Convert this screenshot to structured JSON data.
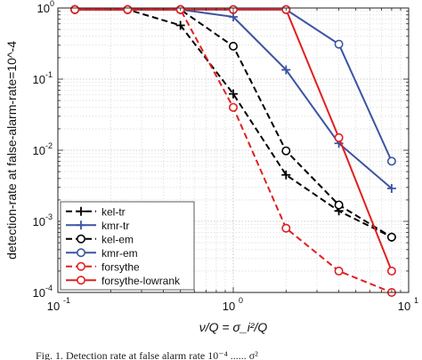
{
  "chart_data": {
    "type": "line",
    "xscale": "log",
    "yscale": "log",
    "xlim": [
      0.1,
      10
    ],
    "ylim": [
      0.0001,
      1
    ],
    "grid": "dotted major and minor",
    "xlabel": "ν/Q = σ_i²/Q",
    "ylabel": "detection-rate at false-alarm-rate=10^-4",
    "x_tick_labels": [
      {
        "value": 0.1,
        "base": "10",
        "exp": "-1"
      },
      {
        "value": 1,
        "base": "10",
        "exp": "0"
      },
      {
        "value": 10,
        "base": "10",
        "exp": "1"
      }
    ],
    "y_tick_labels": [
      {
        "value": 0.0001,
        "base": "10",
        "exp": "-4"
      },
      {
        "value": 0.001,
        "base": "10",
        "exp": "-3"
      },
      {
        "value": 0.01,
        "base": "10",
        "exp": "-2"
      },
      {
        "value": 0.1,
        "base": "10",
        "exp": "-1"
      },
      {
        "value": 1,
        "base": "10",
        "exp": "0"
      }
    ],
    "legend_position": "bottom-left",
    "series": [
      {
        "name": "kel-tr",
        "color": "#000000",
        "dash": "dashed",
        "marker": "plus",
        "x": [
          0.125,
          0.25,
          0.5,
          1,
          2,
          4,
          8
        ],
        "y": [
          0.95,
          0.95,
          0.57,
          0.062,
          0.0045,
          0.0014,
          0.0006
        ]
      },
      {
        "name": "kmr-tr",
        "color": "#3b54a4",
        "dash": "solid",
        "marker": "plus",
        "x": [
          0.125,
          0.25,
          0.5,
          1,
          2,
          4,
          8
        ],
        "y": [
          0.95,
          0.95,
          0.95,
          0.75,
          0.135,
          0.0125,
          0.0029
        ]
      },
      {
        "name": "kel-em",
        "color": "#000000",
        "dash": "dashed",
        "marker": "circle",
        "x": [
          0.125,
          0.25,
          0.5,
          1,
          2,
          4,
          8
        ],
        "y": [
          0.95,
          0.95,
          0.95,
          0.29,
          0.0098,
          0.0017,
          0.0006
        ]
      },
      {
        "name": "kmr-em",
        "color": "#3b54a4",
        "dash": "solid",
        "marker": "circle",
        "x": [
          0.125,
          0.25,
          0.5,
          1,
          2,
          4,
          8
        ],
        "y": [
          0.95,
          0.95,
          0.95,
          0.95,
          0.95,
          0.31,
          0.007
        ]
      },
      {
        "name": "forsythe",
        "color": "#e02020",
        "dash": "dashed",
        "marker": "circle",
        "x": [
          0.125,
          0.25,
          0.5,
          1,
          2,
          4,
          8
        ],
        "y": [
          0.95,
          0.95,
          0.95,
          0.04,
          0.0008,
          0.0002,
          0.0001
        ]
      },
      {
        "name": "forsythe-lowrank",
        "color": "#e02020",
        "dash": "solid",
        "marker": "circle",
        "x": [
          0.125,
          0.25,
          0.5,
          1,
          2,
          4,
          8
        ],
        "y": [
          0.95,
          0.95,
          0.95,
          0.95,
          0.95,
          0.015,
          0.0002
        ]
      }
    ]
  },
  "caption": {
    "text": "Fig. 1.   Detection rate at false alarm rate 10⁻⁴ ...... σ²"
  }
}
